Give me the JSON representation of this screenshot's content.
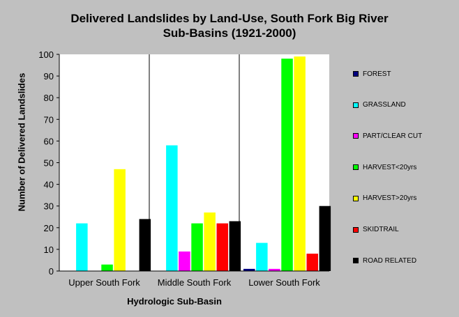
{
  "chart_data": {
    "type": "bar",
    "title_lines": [
      "Delivered Landslides by Land-Use, South Fork Big River",
      "Sub-Basins (1921-2000)"
    ],
    "xlabel": "Hydrologic Sub-Basin",
    "ylabel": "Number of Delivered Landslides",
    "ylim": [
      0,
      100
    ],
    "yticks": [
      0,
      10,
      20,
      30,
      40,
      50,
      60,
      70,
      80,
      90,
      100
    ],
    "grid": false,
    "legend_position": "right",
    "categories": [
      "Upper South Fork",
      "Middle South Fork",
      "Lower South Fork"
    ],
    "series": [
      {
        "name": "FOREST",
        "color": "#000080",
        "values": [
          0,
          0,
          1
        ]
      },
      {
        "name": "GRASSLAND",
        "color": "#00ffff",
        "values": [
          22,
          58,
          13
        ]
      },
      {
        "name": "PART/CLEAR CUT",
        "color": "#ff00ff",
        "values": [
          0,
          9,
          1
        ]
      },
      {
        "name": "HARVEST<20yrs",
        "color": "#00ff00",
        "values": [
          3,
          22,
          98
        ]
      },
      {
        "name": "HARVEST>20yrs",
        "color": "#ffff00",
        "values": [
          47,
          27,
          99
        ]
      },
      {
        "name": "SKIDTRAIL",
        "color": "#ff0000",
        "values": [
          0,
          22,
          8
        ]
      },
      {
        "name": "ROAD RELATED",
        "color": "#000000",
        "values": [
          24,
          23,
          30
        ]
      }
    ]
  }
}
